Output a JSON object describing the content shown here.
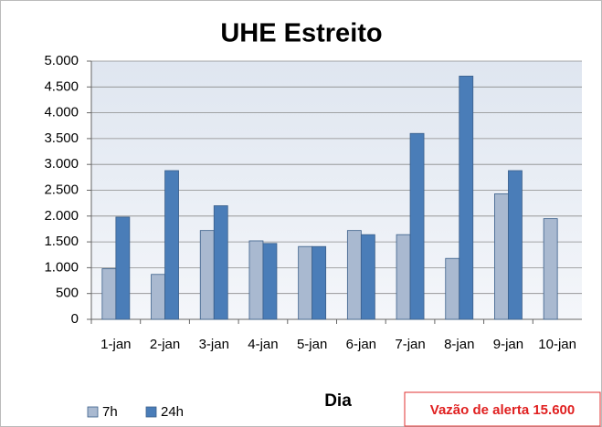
{
  "chart_data": {
    "type": "bar",
    "title": "UHE Estreito",
    "x_label": "Dia",
    "categories": [
      "1-jan",
      "2-jan",
      "3-jan",
      "4-jan",
      "5-jan",
      "6-jan",
      "7-jan",
      "8-jan",
      "9-jan",
      "10-jan"
    ],
    "series": [
      {
        "name": "7h",
        "color": "#a9b9d0",
        "values": [
          980,
          870,
          1720,
          1520,
          1410,
          1720,
          1640,
          1180,
          2430,
          1950
        ]
      },
      {
        "name": "24h",
        "color": "#4a7db8",
        "values": [
          1980,
          2880,
          2200,
          1470,
          1410,
          1640,
          3600,
          4710,
          2880,
          null
        ]
      }
    ],
    "ylim": [
      0,
      5000
    ],
    "yticks": [
      0,
      500,
      {
        "value": 1000,
        "label": "1.000"
      },
      {
        "value": 1500,
        "label": "1.500"
      },
      {
        "value": 2000,
        "label": "2.000"
      },
      {
        "value": 2500,
        "label": "2.500"
      },
      {
        "value": 3000,
        "label": "3.000"
      },
      {
        "value": 3500,
        "label": "3.500"
      },
      {
        "value": 4000,
        "label": "4.000"
      },
      {
        "value": 4500,
        "label": "4.500"
      },
      {
        "value": 5000,
        "label": "5.000"
      }
    ],
    "grid": true,
    "legend": "bottom-left",
    "annotation": "Vazão de alerta 15.600"
  }
}
